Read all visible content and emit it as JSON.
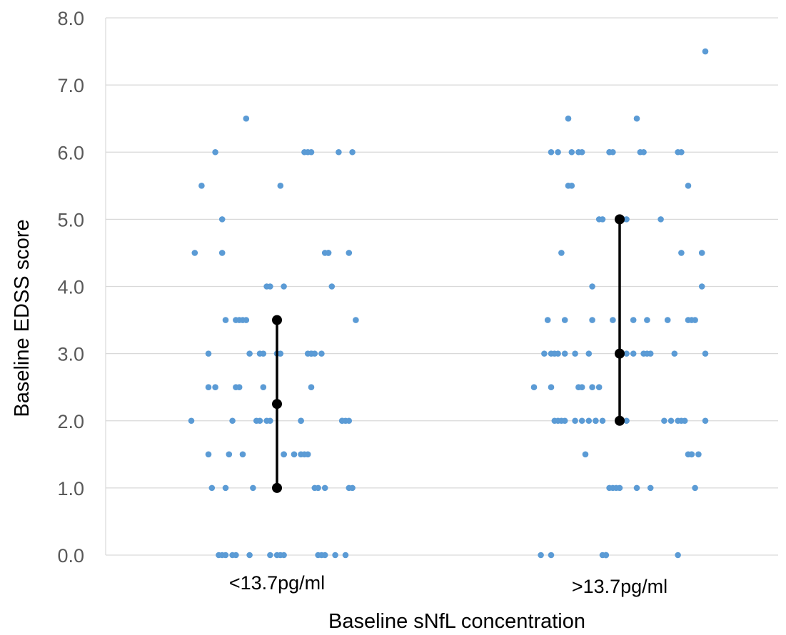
{
  "chart_data": {
    "type": "scatter",
    "title": "",
    "xlabel": "Baseline sNfL concentration",
    "ylabel": "Baseline EDSS score",
    "ylim": [
      0,
      8
    ],
    "y_ticks": [
      "0.0",
      "1.0",
      "2.0",
      "3.0",
      "4.0",
      "5.0",
      "6.0",
      "7.0",
      "8.0"
    ],
    "grid": true,
    "legend": "none",
    "colors": {
      "points": "#5b9bd5",
      "summary": "#000000",
      "grid": "#d9d9d9",
      "tick_text": "#595959"
    },
    "categories": [
      "<13.7pg/ml",
      ">13.7pg/ml"
    ],
    "groups": [
      {
        "category": "<13.7pg/ml",
        "median": 2.25,
        "q1": 1.0,
        "q3": 3.5,
        "points": [
          {
            "x": -0.25,
            "y": 2.0
          },
          {
            "x": -0.24,
            "y": 4.5
          },
          {
            "x": -0.22,
            "y": 5.5
          },
          {
            "x": -0.2,
            "y": 1.5
          },
          {
            "x": -0.2,
            "y": 2.5
          },
          {
            "x": -0.2,
            "y": 3.0
          },
          {
            "x": -0.19,
            "y": 1.0
          },
          {
            "x": -0.18,
            "y": 2.5
          },
          {
            "x": -0.18,
            "y": 6.0
          },
          {
            "x": -0.17,
            "y": 0.0
          },
          {
            "x": -0.16,
            "y": 4.5
          },
          {
            "x": -0.16,
            "y": 5.0
          },
          {
            "x": -0.16,
            "y": 0.0
          },
          {
            "x": -0.15,
            "y": 3.5
          },
          {
            "x": -0.15,
            "y": 1.0
          },
          {
            "x": -0.15,
            "y": 0.0
          },
          {
            "x": -0.14,
            "y": 1.5
          },
          {
            "x": -0.13,
            "y": 2.0
          },
          {
            "x": -0.13,
            "y": 0.0
          },
          {
            "x": -0.12,
            "y": 2.5
          },
          {
            "x": -0.12,
            "y": 3.5
          },
          {
            "x": -0.12,
            "y": 0.0
          },
          {
            "x": -0.11,
            "y": 2.5
          },
          {
            "x": -0.11,
            "y": 3.5
          },
          {
            "x": -0.1,
            "y": 1.5
          },
          {
            "x": -0.1,
            "y": 3.5
          },
          {
            "x": -0.09,
            "y": 6.5
          },
          {
            "x": -0.09,
            "y": 3.5
          },
          {
            "x": -0.08,
            "y": 0.0
          },
          {
            "x": -0.08,
            "y": 3.0
          },
          {
            "x": -0.07,
            "y": 1.0
          },
          {
            "x": -0.06,
            "y": 2.0
          },
          {
            "x": -0.05,
            "y": 3.0
          },
          {
            "x": -0.05,
            "y": 2.0
          },
          {
            "x": -0.04,
            "y": 3.0
          },
          {
            "x": -0.04,
            "y": 2.5
          },
          {
            "x": -0.03,
            "y": 2.0
          },
          {
            "x": -0.03,
            "y": 4.0
          },
          {
            "x": -0.02,
            "y": 4.0
          },
          {
            "x": -0.02,
            "y": 2.0
          },
          {
            "x": -0.02,
            "y": 0.0
          },
          {
            "x": 0.0,
            "y": 3.0
          },
          {
            "x": 0.0,
            "y": 0.0
          },
          {
            "x": 0.0,
            "y": 3.5
          },
          {
            "x": 0.01,
            "y": 5.5
          },
          {
            "x": 0.01,
            "y": 3.0
          },
          {
            "x": 0.01,
            "y": 0.0
          },
          {
            "x": 0.02,
            "y": 1.5
          },
          {
            "x": 0.02,
            "y": 0.0
          },
          {
            "x": 0.02,
            "y": 4.0
          },
          {
            "x": 0.02,
            "y": 1.5
          },
          {
            "x": 0.05,
            "y": 1.5
          },
          {
            "x": 0.07,
            "y": 1.5
          },
          {
            "x": 0.07,
            "y": 2.0
          },
          {
            "x": 0.07,
            "y": 2.0
          },
          {
            "x": 0.08,
            "y": 6.0
          },
          {
            "x": 0.08,
            "y": 1.5
          },
          {
            "x": 0.09,
            "y": 6.0
          },
          {
            "x": 0.09,
            "y": 1.5
          },
          {
            "x": 0.09,
            "y": 3.0
          },
          {
            "x": 0.1,
            "y": 3.0
          },
          {
            "x": 0.1,
            "y": 6.0
          },
          {
            "x": 0.1,
            "y": 3.0
          },
          {
            "x": 0.1,
            "y": 2.5
          },
          {
            "x": 0.11,
            "y": 1.0
          },
          {
            "x": 0.11,
            "y": 3.0
          },
          {
            "x": 0.12,
            "y": 1.0
          },
          {
            "x": 0.12,
            "y": 0.0
          },
          {
            "x": 0.13,
            "y": 0.0
          },
          {
            "x": 0.13,
            "y": 3.0
          },
          {
            "x": 0.14,
            "y": 1.0
          },
          {
            "x": 0.14,
            "y": 4.5
          },
          {
            "x": 0.14,
            "y": 0.0
          },
          {
            "x": 0.15,
            "y": 4.5
          },
          {
            "x": 0.15,
            "y": 4.5
          },
          {
            "x": 0.16,
            "y": 4.0
          },
          {
            "x": 0.17,
            "y": 0.0
          },
          {
            "x": 0.18,
            "y": 6.0
          },
          {
            "x": 0.19,
            "y": 2.0
          },
          {
            "x": 0.19,
            "y": 2.0
          },
          {
            "x": 0.2,
            "y": 0.0
          },
          {
            "x": 0.2,
            "y": 2.0
          },
          {
            "x": 0.21,
            "y": 2.0
          },
          {
            "x": 0.21,
            "y": 4.5
          },
          {
            "x": 0.21,
            "y": 1.0
          },
          {
            "x": 0.22,
            "y": 1.0
          },
          {
            "x": 0.22,
            "y": 6.0
          },
          {
            "x": 0.23,
            "y": 3.5
          }
        ]
      },
      {
        "category": ">13.7pg/ml",
        "median": 3.0,
        "q1": 2.0,
        "q3": 5.0,
        "points": [
          {
            "x": -0.25,
            "y": 2.5
          },
          {
            "x": -0.23,
            "y": 0.0
          },
          {
            "x": -0.22,
            "y": 3.0
          },
          {
            "x": -0.21,
            "y": 3.5
          },
          {
            "x": -0.2,
            "y": 3.0
          },
          {
            "x": -0.2,
            "y": 6.0
          },
          {
            "x": -0.2,
            "y": 2.5
          },
          {
            "x": -0.2,
            "y": 0.0
          },
          {
            "x": -0.19,
            "y": 3.0
          },
          {
            "x": -0.19,
            "y": 2.0
          },
          {
            "x": -0.18,
            "y": 2.0
          },
          {
            "x": -0.18,
            "y": 3.0
          },
          {
            "x": -0.18,
            "y": 6.0
          },
          {
            "x": -0.17,
            "y": 2.0
          },
          {
            "x": -0.17,
            "y": 4.5
          },
          {
            "x": -0.16,
            "y": 2.0
          },
          {
            "x": -0.16,
            "y": 3.5
          },
          {
            "x": -0.16,
            "y": 3.0
          },
          {
            "x": -0.15,
            "y": 5.5
          },
          {
            "x": -0.15,
            "y": 6.5
          },
          {
            "x": -0.14,
            "y": 5.5
          },
          {
            "x": -0.14,
            "y": 6.0
          },
          {
            "x": -0.13,
            "y": 2.0
          },
          {
            "x": -0.13,
            "y": 3.0
          },
          {
            "x": -0.12,
            "y": 2.5
          },
          {
            "x": -0.12,
            "y": 6.0
          },
          {
            "x": -0.11,
            "y": 2.5
          },
          {
            "x": -0.11,
            "y": 2.0
          },
          {
            "x": -0.11,
            "y": 6.0
          },
          {
            "x": -0.1,
            "y": 1.5
          },
          {
            "x": -0.09,
            "y": 3.0
          },
          {
            "x": -0.09,
            "y": 2.0
          },
          {
            "x": -0.08,
            "y": 2.5
          },
          {
            "x": -0.08,
            "y": 3.5
          },
          {
            "x": -0.08,
            "y": 4.0
          },
          {
            "x": -0.07,
            "y": 2.0
          },
          {
            "x": -0.07,
            "y": 2.0
          },
          {
            "x": -0.06,
            "y": 5.0
          },
          {
            "x": -0.06,
            "y": 2.5
          },
          {
            "x": -0.05,
            "y": 0.0
          },
          {
            "x": -0.05,
            "y": 5.0
          },
          {
            "x": -0.05,
            "y": 2.0
          },
          {
            "x": -0.04,
            "y": 0.0
          },
          {
            "x": -0.04,
            "y": 0.0
          },
          {
            "x": -0.04,
            "y": 0.0
          },
          {
            "x": -0.03,
            "y": 6.0
          },
          {
            "x": -0.03,
            "y": 6.0
          },
          {
            "x": -0.03,
            "y": 1.0
          },
          {
            "x": -0.02,
            "y": 1.0
          },
          {
            "x": -0.02,
            "y": 3.5
          },
          {
            "x": -0.02,
            "y": 6.0
          },
          {
            "x": -0.01,
            "y": 1.0
          },
          {
            "x": 0.0,
            "y": 2.0
          },
          {
            "x": 0.0,
            "y": 3.0
          },
          {
            "x": 0.0,
            "y": 1.0
          },
          {
            "x": 0.0,
            "y": 5.0
          },
          {
            "x": 0.01,
            "y": 5.0
          },
          {
            "x": 0.02,
            "y": 5.0
          },
          {
            "x": 0.02,
            "y": 2.0
          },
          {
            "x": 0.02,
            "y": 3.0
          },
          {
            "x": 0.04,
            "y": 3.0
          },
          {
            "x": 0.04,
            "y": 3.5
          },
          {
            "x": 0.05,
            "y": 1.0
          },
          {
            "x": 0.05,
            "y": 6.5
          },
          {
            "x": 0.06,
            "y": 6.0
          },
          {
            "x": 0.07,
            "y": 3.0
          },
          {
            "x": 0.07,
            "y": 6.0
          },
          {
            "x": 0.08,
            "y": 3.0
          },
          {
            "x": 0.08,
            "y": 3.5
          },
          {
            "x": 0.09,
            "y": 3.0
          },
          {
            "x": 0.09,
            "y": 1.0
          },
          {
            "x": 0.12,
            "y": 5.0
          },
          {
            "x": 0.13,
            "y": 2.0
          },
          {
            "x": 0.14,
            "y": 3.5
          },
          {
            "x": 0.15,
            "y": 2.0
          },
          {
            "x": 0.16,
            "y": 3.0
          },
          {
            "x": 0.17,
            "y": 6.0
          },
          {
            "x": 0.17,
            "y": 2.0
          },
          {
            "x": 0.17,
            "y": 0.0
          },
          {
            "x": 0.18,
            "y": 4.5
          },
          {
            "x": 0.18,
            "y": 2.0
          },
          {
            "x": 0.18,
            "y": 6.0
          },
          {
            "x": 0.19,
            "y": 2.0
          },
          {
            "x": 0.2,
            "y": 1.5
          },
          {
            "x": 0.2,
            "y": 5.5
          },
          {
            "x": 0.2,
            "y": 3.5
          },
          {
            "x": 0.21,
            "y": 1.5
          },
          {
            "x": 0.21,
            "y": 1.5
          },
          {
            "x": 0.21,
            "y": 3.5
          },
          {
            "x": 0.22,
            "y": 1.0
          },
          {
            "x": 0.22,
            "y": 3.5
          },
          {
            "x": 0.23,
            "y": 1.5
          },
          {
            "x": 0.24,
            "y": 4.5
          },
          {
            "x": 0.24,
            "y": 4.0
          },
          {
            "x": 0.25,
            "y": 7.5
          },
          {
            "x": 0.25,
            "y": 3.0
          },
          {
            "x": 0.25,
            "y": 2.0
          }
        ]
      }
    ]
  }
}
